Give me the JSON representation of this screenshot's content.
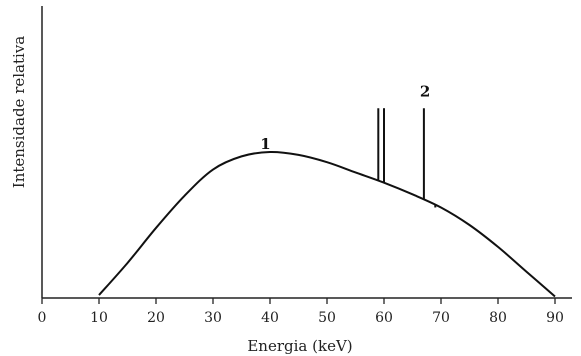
{
  "chart_data": {
    "type": "line",
    "title": "",
    "xlabel": "Energia (keV)",
    "ylabel": "Intensidade relativa",
    "xlim": [
      0,
      95
    ],
    "ylim": [
      0,
      1.3
    ],
    "xticks": [
      "0",
      "10",
      "20",
      "30",
      "40",
      "50",
      "60",
      "70",
      "80",
      "90"
    ],
    "grid": false,
    "series": [
      {
        "kind": "continuous",
        "x": [
          10,
          15,
          20,
          25,
          30,
          35,
          40,
          45,
          50,
          55,
          60,
          65,
          70,
          75,
          80,
          85,
          90
        ],
        "y": [
          0.02,
          0.24,
          0.48,
          0.7,
          0.88,
          0.97,
          1.0,
          0.98,
          0.93,
          0.86,
          0.79,
          0.71,
          0.62,
          0.5,
          0.35,
          0.18,
          0.01
        ]
      },
      {
        "kind": "characteristic-lines",
        "x": [
          59,
          60,
          67,
          69
        ],
        "y": [
          1.3,
          1.3,
          1.3,
          0.62
        ],
        "top": [
          1.3,
          1.3,
          1.3,
          0.62
        ]
      }
    ],
    "annotations": [
      {
        "text": "1",
        "x": 39,
        "y": 1.02
      },
      {
        "text": "2",
        "x": 67,
        "y": 1.38
      }
    ]
  }
}
